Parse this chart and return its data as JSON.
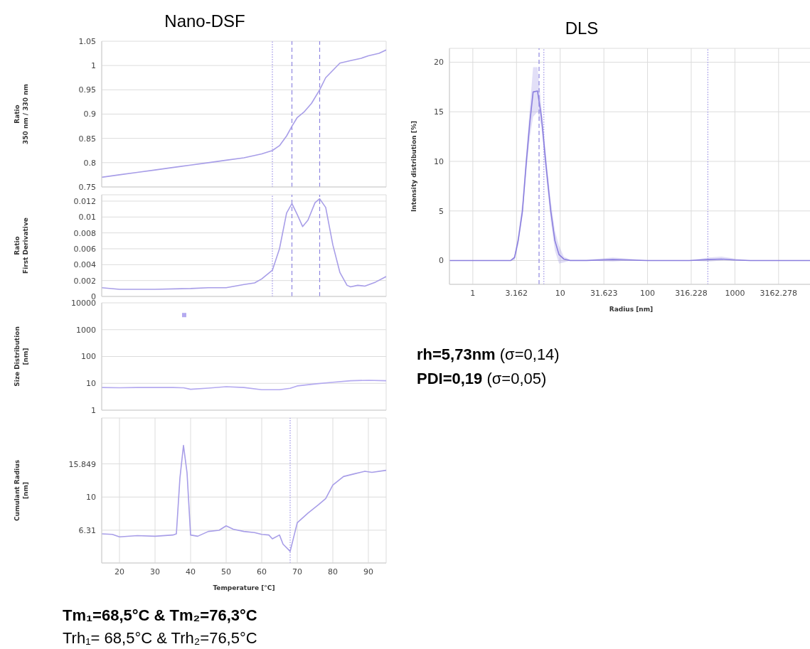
{
  "chart_data": [
    {
      "type": "line",
      "title": "Nano-DSF",
      "ylabel": "Ratio\n350 nm / 330 nm",
      "xlim": [
        15,
        95
      ],
      "xticks": [
        20,
        30,
        40,
        50,
        60,
        70,
        80,
        90
      ],
      "ylim": [
        0.75,
        1.05
      ],
      "yticks": [
        0.75,
        0.8,
        0.85,
        0.9,
        0.95,
        1,
        1.05
      ],
      "grid": true,
      "tick_labels": "y",
      "marker": "none",
      "line_style": "solid",
      "x": [
        15,
        20,
        25,
        30,
        35,
        40,
        45,
        50,
        55,
        60,
        63,
        65,
        67,
        68.5,
        70,
        72,
        74,
        76.3,
        78,
        80,
        82,
        85,
        88,
        90,
        93,
        95
      ],
      "series": [
        {
          "color": "#a89ee8",
          "values": [
            0.77,
            0.775,
            0.78,
            0.785,
            0.79,
            0.795,
            0.8,
            0.805,
            0.81,
            0.818,
            0.825,
            0.835,
            0.855,
            0.875,
            0.893,
            0.905,
            0.922,
            0.95,
            0.975,
            0.99,
            1.005,
            1.01,
            1.015,
            1.02,
            1.025,
            1.032
          ]
        }
      ],
      "ref_lines": [
        {
          "axis": "x",
          "value": 63,
          "color": "#9b90e6",
          "line_style": "dotted"
        },
        {
          "axis": "x",
          "value": 68.5,
          "color": "#8f86e0",
          "line_style": "dashed"
        },
        {
          "axis": "x",
          "value": 76.3,
          "color": "#8f86e0",
          "line_style": "dashed"
        }
      ]
    },
    {
      "type": "line",
      "ylabel": "Ratio\nFirst Derivative",
      "xlim": [
        15,
        95
      ],
      "xticks": [
        20,
        30,
        40,
        50,
        60,
        70,
        80,
        90
      ],
      "ylim": [
        0,
        0.0128
      ],
      "yticks": [
        0,
        0.002,
        0.004,
        0.006,
        0.008,
        0.01,
        0.012
      ],
      "grid": true,
      "tick_labels": "y",
      "marker": "none",
      "line_style": "solid",
      "x": [
        15,
        20,
        30,
        40,
        45,
        50,
        55,
        58,
        60,
        63,
        65,
        67,
        68.5,
        70,
        71.5,
        73,
        75,
        76.3,
        78,
        80,
        82,
        84,
        85,
        87,
        89,
        92,
        95
      ],
      "series": [
        {
          "color": "#a89ee8",
          "values": [
            0.0011,
            0.0009,
            0.0009,
            0.001,
            0.0011,
            0.0011,
            0.0015,
            0.0017,
            0.0022,
            0.0033,
            0.006,
            0.0105,
            0.0117,
            0.0103,
            0.0088,
            0.0096,
            0.0118,
            0.0123,
            0.0112,
            0.0065,
            0.003,
            0.0014,
            0.0012,
            0.0014,
            0.0013,
            0.0018,
            0.0025
          ]
        }
      ],
      "ref_lines": [
        {
          "axis": "x",
          "value": 63,
          "color": "#9b90e6",
          "line_style": "dotted"
        },
        {
          "axis": "x",
          "value": 68.5,
          "color": "#8f86e0",
          "line_style": "dashed"
        },
        {
          "axis": "x",
          "value": 76.3,
          "color": "#8f86e0",
          "line_style": "dashed"
        }
      ]
    },
    {
      "type": "line",
      "ylabel": "Size Distribution\n[nm]",
      "xlim": [
        15,
        95
      ],
      "xticks": [
        20,
        30,
        40,
        50,
        60,
        70,
        80,
        90
      ],
      "ylim": [
        1,
        10000
      ],
      "yticks": [
        1,
        10,
        100,
        1000,
        10000
      ],
      "log": "y",
      "grid": true,
      "tick_labels": "y",
      "marker": "none",
      "line_style": "solid",
      "x": [
        15,
        20,
        25,
        30,
        35,
        38,
        40,
        45,
        50,
        55,
        60,
        65,
        68,
        70,
        75,
        80,
        85,
        90,
        95
      ],
      "series": [
        {
          "color": "#b4aaf0",
          "values": [
            7,
            6.8,
            7,
            7,
            7,
            6.8,
            6,
            6.6,
            7.5,
            7,
            5.8,
            5.8,
            6.5,
            8,
            9.5,
            11,
            12.5,
            13,
            12.5
          ]
        },
        {
          "type": "scatter",
          "color": "#b4aaf0",
          "marker": "square",
          "x": [
            38.2
          ],
          "values": [
            3500
          ]
        }
      ]
    },
    {
      "type": "line",
      "xlabel": "Temperature [°C]",
      "ylabel": "Cumulant Radius\n[nm]",
      "xlim": [
        15,
        95
      ],
      "xticks": [
        20,
        30,
        40,
        50,
        60,
        70,
        80,
        90
      ],
      "ylim": [
        4,
        30
      ],
      "yticks": [
        6.31,
        10,
        15.849
      ],
      "log": "y",
      "grid": true,
      "marker": "none",
      "line_style": "solid",
      "x": [
        15,
        18,
        20,
        25,
        30,
        35,
        36,
        37,
        38,
        39,
        40,
        42,
        45,
        48,
        50,
        52,
        55,
        58,
        60,
        62,
        63,
        65,
        66,
        68,
        70,
        73,
        76,
        78,
        80,
        83,
        86,
        89,
        91,
        95
      ],
      "series": [
        {
          "color": "#a89ee8",
          "values": [
            6.0,
            5.95,
            5.75,
            5.85,
            5.8,
            5.9,
            6.0,
            13,
            20.5,
            14,
            5.9,
            5.8,
            6.2,
            6.3,
            6.7,
            6.4,
            6.2,
            6.1,
            5.95,
            5.9,
            5.6,
            5.9,
            5.2,
            4.7,
            7,
            8,
            9,
            9.8,
            11.8,
            13.3,
            13.8,
            14.3,
            14.1,
            14.5
          ]
        }
      ],
      "ref_lines": [
        {
          "axis": "x",
          "value": 68,
          "color": "#9b90e6",
          "line_style": "dotted"
        }
      ],
      "annotations": [
        "Tm₁=68,5°C & Tm₂=76,3°C",
        "Trh₁= 68,5°C & Trh₂=76,5°C"
      ]
    },
    {
      "type": "line",
      "title": "DLS",
      "xlabel": "Radius [nm]",
      "ylabel": "Intensity distribution [%]",
      "log": "x",
      "xlim": [
        0.54,
        7800
      ],
      "xticks": [
        1,
        3.162,
        10,
        31.623,
        100,
        316.228,
        1000,
        3162.278
      ],
      "ylim": [
        -2.4,
        21.4
      ],
      "yticks": [
        0,
        5,
        10,
        15,
        20
      ],
      "grid": true,
      "marker": "none",
      "line_style": "solid",
      "x": [
        0.54,
        1,
        2,
        2.7,
        3.0,
        3.3,
        3.7,
        4.1,
        4.5,
        4.9,
        5.5,
        6.1,
        6.9,
        7.8,
        8.7,
        9.7,
        11,
        13,
        20,
        40,
        60,
        100,
        300,
        500,
        700,
        1000,
        1500,
        7800
      ],
      "series": [
        {
          "color": "#8a7ede",
          "values": [
            0,
            0,
            0,
            0,
            0.3,
            2,
            5,
            10,
            14,
            17,
            17.1,
            14.5,
            9.5,
            5,
            2,
            0.6,
            0.15,
            0,
            0,
            0.1,
            0.05,
            0,
            0,
            0.1,
            0.15,
            0.05,
            0,
            0
          ],
          "lower": [
            0,
            0,
            0,
            0,
            0,
            1.5,
            4.5,
            9,
            12.5,
            14.5,
            15,
            13.5,
            8.5,
            4,
            1,
            -0.3,
            -0.2,
            0,
            0,
            -0.1,
            0,
            0,
            0,
            -0.1,
            0,
            0,
            0,
            0
          ],
          "upper": [
            0,
            0,
            0,
            0,
            0.5,
            2.5,
            6,
            11,
            15.5,
            19.5,
            19.5,
            15.5,
            10.5,
            6,
            3,
            1.5,
            0.4,
            0.1,
            0.1,
            0.3,
            0.2,
            0,
            0,
            0.3,
            0.4,
            0.2,
            0,
            0
          ]
        }
      ],
      "ref_lines": [
        {
          "axis": "x",
          "value": 5.73,
          "color": "#8f86e0",
          "line_style": "dashed"
        },
        {
          "axis": "x",
          "value": 6.5,
          "color": "#9b90e6",
          "line_style": "dotted"
        },
        {
          "axis": "x",
          "value": 490,
          "color": "#9b90e6",
          "line_style": "dotted"
        }
      ],
      "annotations": [
        "rh=5,73nm (σ=0,14)",
        "PDI=0,19 (σ=0,05)"
      ]
    }
  ]
}
